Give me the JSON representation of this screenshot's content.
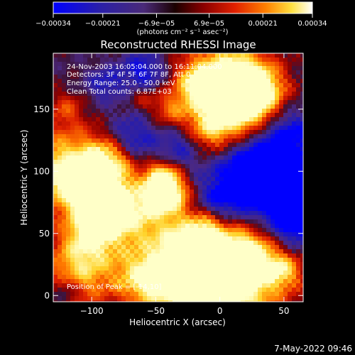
{
  "chart_data": {
    "type": "heatmap",
    "title": "Reconstructed RHESSI Image",
    "xlabel": "Heliocentric X (arcsec)",
    "ylabel": "Heliocentric Y (arcsec)",
    "xlim": [
      -130,
      65
    ],
    "ylim": [
      -5,
      195
    ],
    "x_ticks": [
      -100,
      -50,
      0,
      50
    ],
    "x_tick_labels": [
      "−100",
      "−50",
      "0",
      "50"
    ],
    "y_ticks": [
      0,
      50,
      100,
      150
    ],
    "y_tick_labels": [
      "0",
      "50",
      "100",
      "150"
    ],
    "colorbar": {
      "min": -0.00034,
      "max": 0.00034,
      "ticks": [
        -0.00034,
        -0.00021,
        -6.9e-05,
        6.9e-05,
        0.00021,
        0.00034
      ],
      "tick_labels": [
        "−0.00034",
        "−0.00021",
        "−6.9e−05",
        "6.9e−05",
        "0.00021",
        "0.00034"
      ],
      "unit_label": "(photons cm⁻² s⁻¹ asec⁻²)",
      "colors": [
        "#0000ff",
        "#2a1fa8",
        "#4a2a78",
        "#1a0000",
        "#b00000",
        "#ff4000",
        "#ffa000",
        "#ffff60",
        "#ffffff"
      ]
    },
    "annotations": [
      "24-Nov-2003 16:05:04.000 to 16:11:04.000",
      "Detectors: 3F 4F 5F 6F 7F 8F, Att 0",
      "Energy Range: 25.0 - 50.0 keV",
      "Clean     Total counts: 6.87E+03"
    ],
    "peak_label": "Position of Peak = [-14,10]",
    "grid": false
  },
  "footer": {
    "timestamp": "7-May-2022 09:46"
  },
  "colors": {
    "background": "#000000",
    "axis": "#ffffff",
    "text": "#ffffff"
  }
}
